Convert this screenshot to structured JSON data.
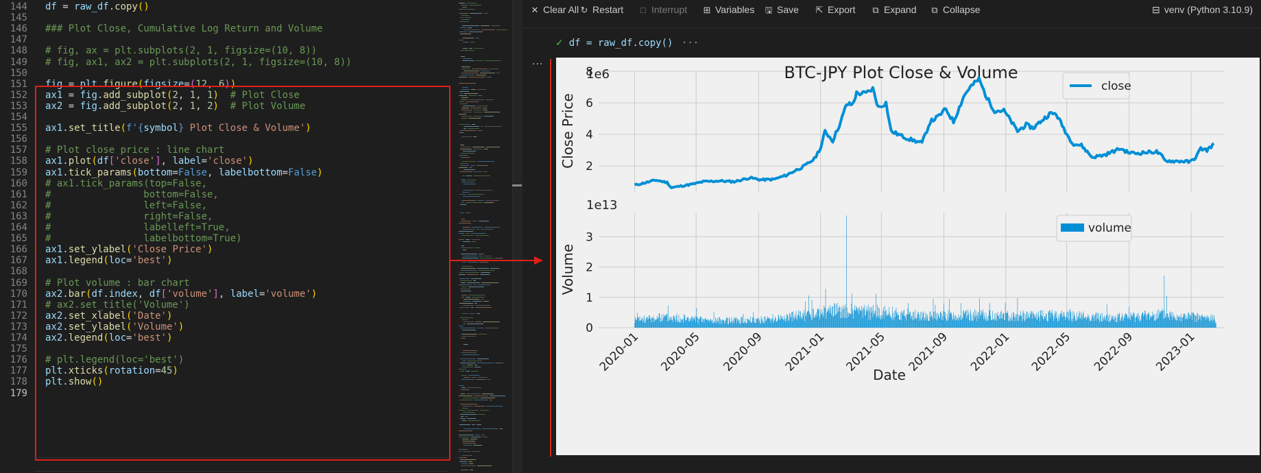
{
  "editor": {
    "lines": [
      {
        "n": "144",
        "tokens": [
          [
            "df",
            "var"
          ],
          [
            " = ",
            "op"
          ],
          [
            "raw_df",
            "var"
          ],
          [
            ".",
            "op"
          ],
          [
            "copy",
            "fn"
          ],
          [
            "()",
            "p1"
          ]
        ]
      },
      {
        "n": "145",
        "tokens": []
      },
      {
        "n": "146",
        "tokens": [
          [
            "### Plot Close, Cumulative Log Return and Volume",
            "cm"
          ]
        ]
      },
      {
        "n": "147",
        "tokens": []
      },
      {
        "n": "148",
        "tokens": [
          [
            "# fig, ax = plt.subplots(2, 1, figsize=(10, 8))",
            "cm"
          ]
        ]
      },
      {
        "n": "149",
        "tokens": [
          [
            "# fig, ax1, ax2 = plt.subplots(2, 1, figsize=(10, 8))",
            "cm"
          ]
        ]
      },
      {
        "n": "150",
        "tokens": []
      },
      {
        "n": "151",
        "tokens": [
          [
            "fig",
            "var"
          ],
          [
            " = ",
            "op"
          ],
          [
            "plt",
            "var"
          ],
          [
            ".",
            "op"
          ],
          [
            "figure",
            "fn"
          ],
          [
            "(",
            "p1"
          ],
          [
            "figsize",
            "var"
          ],
          [
            "=",
            "op"
          ],
          [
            "(",
            "p2"
          ],
          [
            "12",
            "num"
          ],
          [
            ", ",
            "op"
          ],
          [
            "6",
            "num"
          ],
          [
            ")",
            "p2"
          ],
          [
            ")",
            "p1"
          ]
        ]
      },
      {
        "n": "152",
        "tokens": [
          [
            "ax1",
            "var"
          ],
          [
            " = ",
            "op"
          ],
          [
            "fig",
            "var"
          ],
          [
            ".",
            "op"
          ],
          [
            "add_subplot",
            "fn"
          ],
          [
            "(",
            "p1"
          ],
          [
            "2",
            "num"
          ],
          [
            ", ",
            "op"
          ],
          [
            "1",
            "num"
          ],
          [
            ", ",
            "op"
          ],
          [
            "1",
            "num"
          ],
          [
            ")",
            "p1"
          ],
          [
            "  # Plot Close",
            "cm"
          ]
        ]
      },
      {
        "n": "153",
        "tokens": [
          [
            "ax2",
            "var"
          ],
          [
            " = ",
            "op"
          ],
          [
            "fig",
            "var"
          ],
          [
            ".",
            "op"
          ],
          [
            "add_subplot",
            "fn"
          ],
          [
            "(",
            "p1"
          ],
          [
            "2",
            "num"
          ],
          [
            ", ",
            "op"
          ],
          [
            "1",
            "num"
          ],
          [
            ", ",
            "op"
          ],
          [
            "2",
            "num"
          ],
          [
            ")",
            "p1"
          ],
          [
            "  # Plot Volume",
            "cm"
          ]
        ]
      },
      {
        "n": "154",
        "tokens": []
      },
      {
        "n": "155",
        "tokens": [
          [
            "ax1",
            "var"
          ],
          [
            ".",
            "op"
          ],
          [
            "set_title",
            "fn"
          ],
          [
            "(",
            "p1"
          ],
          [
            "f'",
            "kw"
          ],
          [
            "{",
            "kw"
          ],
          [
            "symbol",
            "var"
          ],
          [
            "}",
            "kw"
          ],
          [
            " Plot Close & Volume'",
            "str"
          ],
          [
            ")",
            "p1"
          ]
        ]
      },
      {
        "n": "156",
        "tokens": []
      },
      {
        "n": "157",
        "tokens": [
          [
            "# Plot close price : line chart",
            "cm"
          ]
        ]
      },
      {
        "n": "158",
        "tokens": [
          [
            "ax1",
            "var"
          ],
          [
            ".",
            "op"
          ],
          [
            "plot",
            "fn"
          ],
          [
            "(",
            "p1"
          ],
          [
            "df",
            "var"
          ],
          [
            "[",
            "p2"
          ],
          [
            "'close'",
            "str"
          ],
          [
            "]",
            "p2"
          ],
          [
            ", ",
            "op"
          ],
          [
            "label",
            "var"
          ],
          [
            "=",
            "op"
          ],
          [
            "'close'",
            "str"
          ],
          [
            ")",
            "p1"
          ]
        ]
      },
      {
        "n": "159",
        "tokens": [
          [
            "ax1",
            "var"
          ],
          [
            ".",
            "op"
          ],
          [
            "tick_params",
            "fn"
          ],
          [
            "(",
            "p1"
          ],
          [
            "bottom",
            "var"
          ],
          [
            "=",
            "op"
          ],
          [
            "False",
            "kw"
          ],
          [
            ", ",
            "op"
          ],
          [
            "labelbottom",
            "var"
          ],
          [
            "=",
            "op"
          ],
          [
            "False",
            "kw"
          ],
          [
            ")",
            "p1"
          ]
        ]
      },
      {
        "n": "160",
        "tokens": [
          [
            "# ax1.tick_params(top=False,",
            "cm"
          ]
        ]
      },
      {
        "n": "161",
        "tokens": [
          [
            "#                bottom=False,",
            "cm"
          ]
        ]
      },
      {
        "n": "162",
        "tokens": [
          [
            "#                left=False,",
            "cm"
          ]
        ]
      },
      {
        "n": "163",
        "tokens": [
          [
            "#                right=False,",
            "cm"
          ]
        ]
      },
      {
        "n": "164",
        "tokens": [
          [
            "#                labelleft=True,",
            "cm"
          ]
        ]
      },
      {
        "n": "165",
        "tokens": [
          [
            "#                labelbottom=True)",
            "cm"
          ]
        ]
      },
      {
        "n": "166",
        "tokens": [
          [
            "ax1",
            "var"
          ],
          [
            ".",
            "op"
          ],
          [
            "set_ylabel",
            "fn"
          ],
          [
            "(",
            "p1"
          ],
          [
            "'Close Price'",
            "str"
          ],
          [
            ")",
            "p1"
          ]
        ]
      },
      {
        "n": "167",
        "tokens": [
          [
            "ax1",
            "var"
          ],
          [
            ".",
            "op"
          ],
          [
            "legend",
            "fn"
          ],
          [
            "(",
            "p1"
          ],
          [
            "loc",
            "var"
          ],
          [
            "=",
            "op"
          ],
          [
            "'best'",
            "str"
          ],
          [
            ")",
            "p1"
          ]
        ]
      },
      {
        "n": "168",
        "tokens": []
      },
      {
        "n": "169",
        "tokens": [
          [
            "# Plot volume : bar chart",
            "cm"
          ]
        ]
      },
      {
        "n": "170",
        "tokens": [
          [
            "ax2",
            "var"
          ],
          [
            ".",
            "op"
          ],
          [
            "bar",
            "fn"
          ],
          [
            "(",
            "p1"
          ],
          [
            "df",
            "var"
          ],
          [
            ".",
            "op"
          ],
          [
            "index",
            "var"
          ],
          [
            ", ",
            "op"
          ],
          [
            "df",
            "var"
          ],
          [
            "[",
            "p2"
          ],
          [
            "'volume'",
            "str"
          ],
          [
            "]",
            "p2"
          ],
          [
            ", ",
            "op"
          ],
          [
            "label",
            "var"
          ],
          [
            "=",
            "op"
          ],
          [
            "'volume'",
            "str"
          ],
          [
            ")",
            "p1"
          ]
        ]
      },
      {
        "n": "171",
        "tokens": [
          [
            "# ax2.set_title('Volume')",
            "cm"
          ]
        ]
      },
      {
        "n": "172",
        "tokens": [
          [
            "ax2",
            "var"
          ],
          [
            ".",
            "op"
          ],
          [
            "set_xlabel",
            "fn"
          ],
          [
            "(",
            "p1"
          ],
          [
            "'Date'",
            "str"
          ],
          [
            ")",
            "p1"
          ]
        ]
      },
      {
        "n": "173",
        "tokens": [
          [
            "ax2",
            "var"
          ],
          [
            ".",
            "op"
          ],
          [
            "set_ylabel",
            "fn"
          ],
          [
            "(",
            "p1"
          ],
          [
            "'Volume'",
            "str"
          ],
          [
            ")",
            "p1"
          ]
        ]
      },
      {
        "n": "174",
        "tokens": [
          [
            "ax2",
            "var"
          ],
          [
            ".",
            "op"
          ],
          [
            "legend",
            "fn"
          ],
          [
            "(",
            "p1"
          ],
          [
            "loc",
            "var"
          ],
          [
            "=",
            "op"
          ],
          [
            "'best'",
            "str"
          ],
          [
            ")",
            "p1"
          ]
        ]
      },
      {
        "n": "175",
        "tokens": []
      },
      {
        "n": "176",
        "tokens": [
          [
            "# plt.legend(loc='best')",
            "cm"
          ]
        ]
      },
      {
        "n": "177",
        "tokens": [
          [
            "plt",
            "var"
          ],
          [
            ".",
            "op"
          ],
          [
            "xticks",
            "fn"
          ],
          [
            "(",
            "p1"
          ],
          [
            "rotation",
            "var"
          ],
          [
            "=",
            "op"
          ],
          [
            "45",
            "num"
          ],
          [
            ")",
            "p1"
          ]
        ]
      },
      {
        "n": "178",
        "tokens": [
          [
            "plt",
            "var"
          ],
          [
            ".",
            "op"
          ],
          [
            "show",
            "fn"
          ],
          [
            "()",
            "p1"
          ]
        ]
      },
      {
        "n": "179",
        "tokens": []
      }
    ],
    "active_line": "179"
  },
  "toolbar": {
    "items": [
      {
        "label": "Clear All",
        "icon": "close-icon",
        "glyph": "✕",
        "enabled": true
      },
      {
        "label": "Restart",
        "icon": "restart-icon",
        "glyph": "↻",
        "enabled": true
      },
      {
        "label": "Interrupt",
        "icon": "stop-icon",
        "glyph": "□",
        "enabled": false
      },
      {
        "label": "Variables",
        "icon": "variables-icon",
        "glyph": "⊞",
        "enabled": true
      },
      {
        "label": "Save",
        "icon": "save-icon",
        "glyph": "🖫",
        "enabled": true
      },
      {
        "label": "Export",
        "icon": "export-icon",
        "glyph": "⇱",
        "enabled": true
      },
      {
        "label": "Expand",
        "icon": "expand-icon",
        "glyph": "⧉",
        "enabled": true
      },
      {
        "label": "Collapse",
        "icon": "collapse-icon",
        "glyph": "⧉",
        "enabled": true
      }
    ],
    "kernel_label": "venv (Python 3.10.9)",
    "kernel_icon": "kernel-icon"
  },
  "cell": {
    "input": "df = raw_df.copy()",
    "more": "···",
    "output_menu": "···"
  },
  "colors": {
    "highlight": "#e0201b",
    "series": "#008fd5",
    "plot_bg": "#f0f0f0"
  },
  "chart_data": [
    {
      "type": "line",
      "title": "BTC-JPY Plot Close & Volume",
      "ylabel": "Close Price",
      "offset_text": "1e6",
      "ylim": [
        0.35,
        8.0
      ],
      "yticks": [
        2,
        4,
        6,
        8
      ],
      "xlim": [
        "2019-10-22",
        "2023-03-08"
      ],
      "grid": true,
      "legend": {
        "entries": [
          "close"
        ],
        "position": "upper right"
      },
      "series": [
        {
          "name": "close",
          "x": [
            "2020-01-01",
            "2020-01-20",
            "2020-02-12",
            "2020-03-05",
            "2020-03-13",
            "2020-04-01",
            "2020-04-25",
            "2020-05-15",
            "2020-06-15",
            "2020-07-15",
            "2020-08-15",
            "2020-09-05",
            "2020-10-01",
            "2020-10-25",
            "2020-11-15",
            "2020-12-01",
            "2020-12-20",
            "2021-01-02",
            "2021-01-10",
            "2021-01-25",
            "2021-02-10",
            "2021-02-21",
            "2021-03-05",
            "2021-03-13",
            "2021-04-01",
            "2021-04-14",
            "2021-04-25",
            "2021-05-10",
            "2021-05-20",
            "2021-06-10",
            "2021-06-25",
            "2021-07-20",
            "2021-08-05",
            "2021-08-20",
            "2021-09-05",
            "2021-09-20",
            "2021-10-10",
            "2021-10-20",
            "2021-11-09",
            "2021-11-25",
            "2021-12-10",
            "2021-12-28",
            "2022-01-10",
            "2022-01-24",
            "2022-02-10",
            "2022-02-24",
            "2022-03-10",
            "2022-03-28",
            "2022-04-10",
            "2022-04-25",
            "2022-05-05",
            "2022-05-15",
            "2022-05-30",
            "2022-06-13",
            "2022-06-20",
            "2022-07-15",
            "2022-07-30",
            "2022-08-15",
            "2022-08-30",
            "2022-09-15",
            "2022-10-01",
            "2022-10-25",
            "2022-11-05",
            "2022-11-10",
            "2022-11-25",
            "2022-12-15",
            "2022-12-30",
            "2023-01-10",
            "2023-01-20",
            "2023-02-01",
            "2023-02-15"
          ],
          "y": [
            0.78,
            0.92,
            1.1,
            0.95,
            0.62,
            0.72,
            0.85,
            1.0,
            1.05,
            1.0,
            1.25,
            1.12,
            1.15,
            1.4,
            1.75,
            2.0,
            2.45,
            3.2,
            4.2,
            3.6,
            4.8,
            5.9,
            5.9,
            6.6,
            6.6,
            6.9,
            5.7,
            6.0,
            4.2,
            3.9,
            3.7,
            3.45,
            4.8,
            5.1,
            5.6,
            4.8,
            6.4,
            6.9,
            7.5,
            6.3,
            5.5,
            5.5,
            4.9,
            4.2,
            4.6,
            4.4,
            4.8,
            5.3,
            5.3,
            4.4,
            3.8,
            3.4,
            3.3,
            2.8,
            2.55,
            2.7,
            2.9,
            3.1,
            2.85,
            2.8,
            2.85,
            2.9,
            2.6,
            2.35,
            2.3,
            2.3,
            2.25,
            2.55,
            3.1,
            3.0,
            3.4
          ]
        }
      ]
    },
    {
      "type": "bar",
      "ylabel": "Volume",
      "xlabel": "Date",
      "offset_text": "1e13",
      "ylim": [
        0,
        3.8
      ],
      "yticks": [
        0,
        1,
        2,
        3
      ],
      "xlim": [
        "2019-10-22",
        "2023-03-08"
      ],
      "grid": true,
      "legend": {
        "entries": [
          "volume"
        ],
        "position": "upper right"
      },
      "xtick_labels": [
        "2020-01",
        "2020-05",
        "2020-09",
        "2021-01",
        "2021-05",
        "2021-09",
        "2022-01",
        "2022-05",
        "2022-09",
        "2023-01"
      ],
      "series": [
        {
          "name": "volume",
          "x_range": [
            "2020-01-01",
            "2023-02-19"
          ],
          "baseline_profile": {
            "dates": [
              "2020-01-01",
              "2020-03-01",
              "2020-06-01",
              "2020-09-01",
              "2020-12-01",
              "2021-02-01",
              "2021-05-01",
              "2021-08-01",
              "2021-11-01",
              "2022-02-01",
              "2022-05-01",
              "2022-08-01",
              "2022-11-01",
              "2023-02-19"
            ],
            "levels": [
              0.28,
              0.38,
              0.26,
              0.28,
              0.45,
              0.62,
              0.55,
              0.42,
              0.45,
              0.42,
              0.45,
              0.35,
              0.48,
              0.32
            ]
          },
          "spikes": [
            {
              "x": "2021-02-21",
              "y": 3.7
            },
            {
              "x": "2021-01-11",
              "y": 1.28
            },
            {
              "x": "2021-04-20",
              "y": 1.12
            },
            {
              "x": "2022-01-24",
              "y": 0.98
            },
            {
              "x": "2022-11-09",
              "y": 1.72
            },
            {
              "x": "2022-11-14",
              "y": 1.05
            }
          ]
        }
      ]
    }
  ]
}
